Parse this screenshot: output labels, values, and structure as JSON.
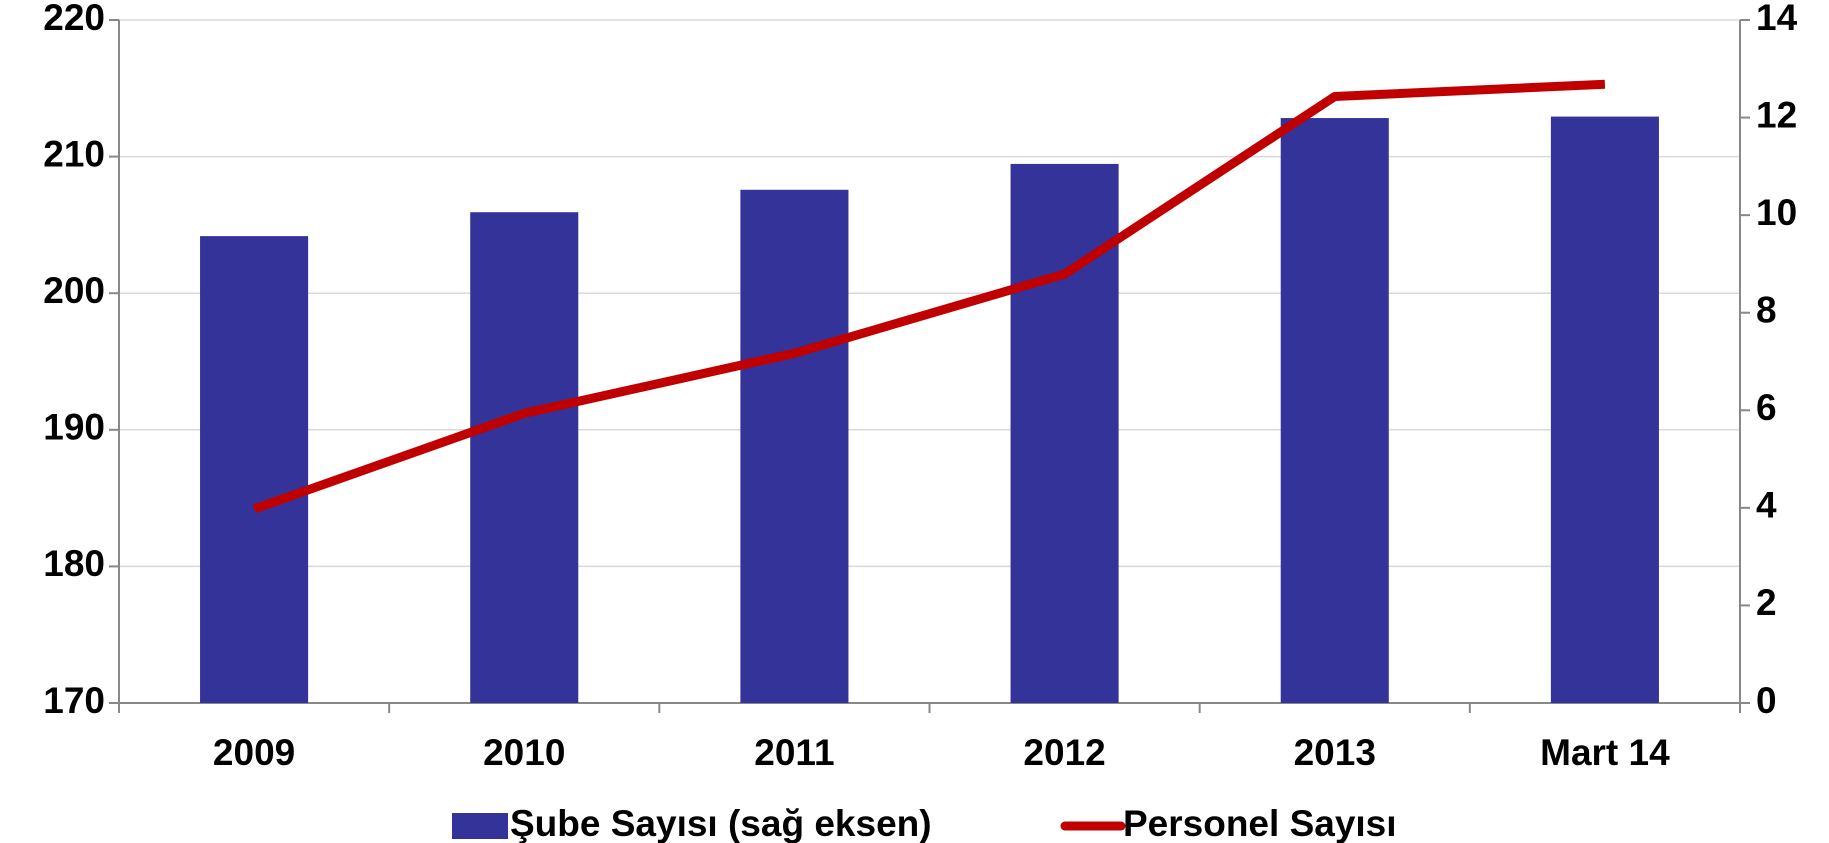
{
  "chart_data": {
    "type": "bar_line",
    "categories": [
      "2009",
      "2010",
      "2011",
      "2012",
      "2013",
      "Mart 14"
    ],
    "series": [
      {
        "name": "Şube Sayısı (sağ eksen)",
        "color": "#333399",
        "type": "bar",
        "axis": "y2",
        "values": [
          9.57,
          10.06,
          10.52,
          11.05,
          11.99,
          12.02
        ]
      },
      {
        "name": "Personel Sayısı",
        "color": "#c00000",
        "type": "line",
        "axis": "y",
        "values": [
          184.2,
          191.2,
          195.6,
          201.4,
          214.4,
          215.3
        ]
      }
    ],
    "ylim": [
      170,
      220
    ],
    "yticks": [
      170,
      180,
      190,
      200,
      210,
      220
    ],
    "y2lim": [
      0,
      14
    ],
    "y2ticks": [
      0,
      2,
      4,
      6,
      8,
      10,
      12,
      14
    ],
    "grid": true
  }
}
